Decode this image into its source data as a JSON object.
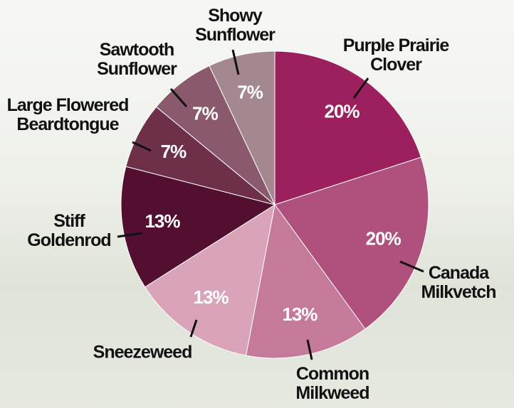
{
  "chart_data": {
    "type": "pie",
    "categories": [
      "Purple Prairie Clover",
      "Canada Milkvetch",
      "Common Milkweed",
      "Sneezeweed",
      "Stiff Goldenrod",
      "Large Flowered Beardtongue",
      "Sawtooth Sunflower",
      "Showy Sunflower"
    ],
    "values": [
      20,
      20,
      13,
      13,
      13,
      7,
      7,
      7
    ],
    "value_labels": [
      "20%",
      "20%",
      "13%",
      "13%",
      "13%",
      "7%",
      "7%",
      "7%"
    ],
    "colors": [
      "#9c1f5e",
      "#b0507c",
      "#c47a98",
      "#d9a4b8",
      "#520f30",
      "#6e2f48",
      "#8a5a6c",
      "#a38890"
    ],
    "start_angle": "top",
    "direction": "clockwise"
  }
}
